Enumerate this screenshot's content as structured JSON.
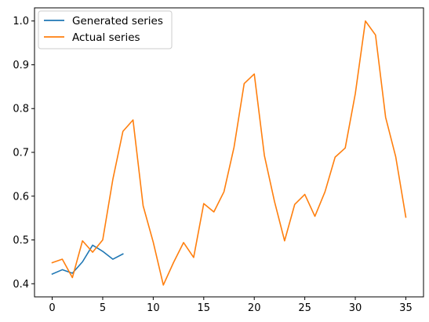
{
  "chart_data": {
    "type": "line",
    "title": "",
    "xlabel": "",
    "ylabel": "",
    "xlim": [
      -1.75,
      36.75
    ],
    "ylim": [
      0.37,
      1.03
    ],
    "x_ticks": [
      0,
      5,
      10,
      15,
      20,
      25,
      30,
      35
    ],
    "y_ticks": [
      0.4,
      0.5,
      0.6,
      0.7,
      0.8,
      0.9,
      1.0
    ],
    "y_tick_labels": [
      "0.4",
      "0.5",
      "0.6",
      "0.7",
      "0.8",
      "0.9",
      "1.0"
    ],
    "grid": false,
    "legend_position": "top-left",
    "series": [
      {
        "name": "Generated series",
        "color": "#1f77b4",
        "x": [
          0,
          1,
          2,
          3,
          4,
          5,
          6,
          7
        ],
        "y": [
          0.422,
          0.432,
          0.424,
          0.45,
          0.488,
          0.474,
          0.456,
          0.468
        ]
      },
      {
        "name": "Actual series",
        "color": "#ff7f0e",
        "x": [
          0,
          1,
          2,
          3,
          4,
          5,
          6,
          7,
          8,
          9,
          10,
          11,
          12,
          13,
          14,
          15,
          16,
          17,
          18,
          19,
          20,
          21,
          22,
          23,
          24,
          25,
          26,
          27,
          28,
          29,
          30,
          31,
          32,
          33,
          34,
          35
        ],
        "y": [
          0.448,
          0.456,
          0.414,
          0.498,
          0.472,
          0.5,
          0.638,
          0.748,
          0.774,
          0.578,
          0.495,
          0.397,
          0.448,
          0.494,
          0.46,
          0.583,
          0.564,
          0.61,
          0.712,
          0.857,
          0.879,
          0.693,
          0.588,
          0.498,
          0.581,
          0.604,
          0.554,
          0.61,
          0.689,
          0.71,
          0.834,
          1.0,
          0.968,
          0.78,
          0.69,
          0.552
        ]
      }
    ]
  }
}
